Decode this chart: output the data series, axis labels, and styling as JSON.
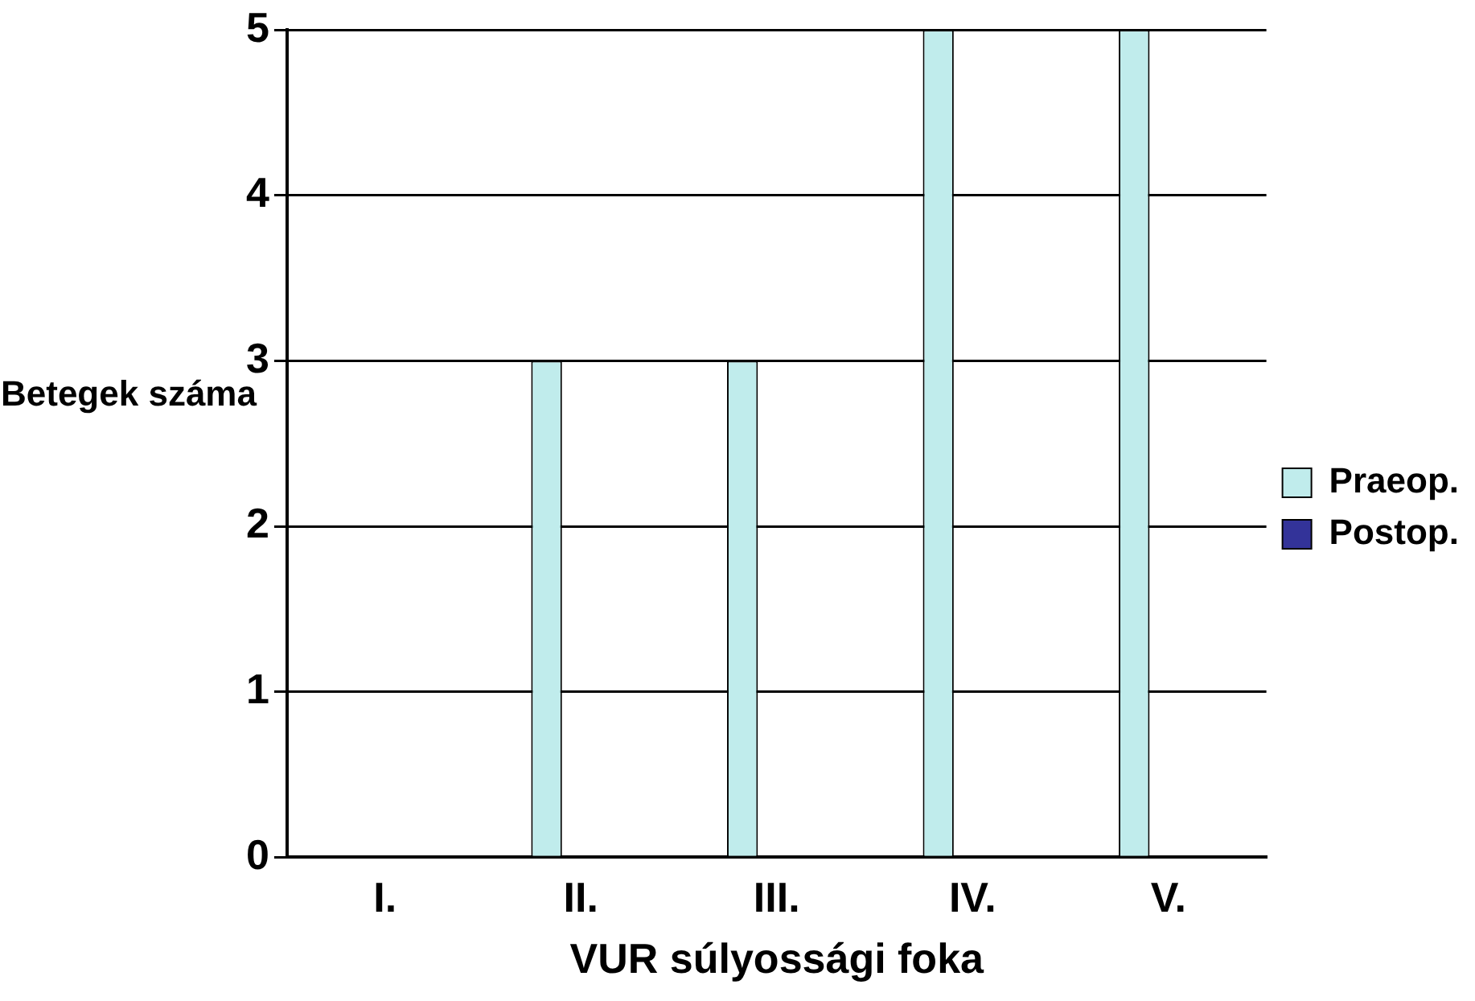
{
  "chart_data": {
    "type": "bar",
    "xlabel": "VUR súlyossági foka",
    "ylabel": "Betegek száma",
    "categories": [
      "I.",
      "II.",
      "III.",
      "IV.",
      "V."
    ],
    "series": [
      {
        "name": "Praeop.",
        "color": "#c0ecec",
        "values": [
          0,
          3,
          3,
          5,
          5
        ]
      },
      {
        "name": "Postop.",
        "color": "#333399",
        "values": [
          0,
          0,
          0,
          0,
          0
        ]
      }
    ],
    "ylim": [
      0,
      5
    ],
    "yticks": [
      0,
      1,
      2,
      3,
      4,
      5
    ],
    "grid": "y",
    "legend": "right"
  }
}
